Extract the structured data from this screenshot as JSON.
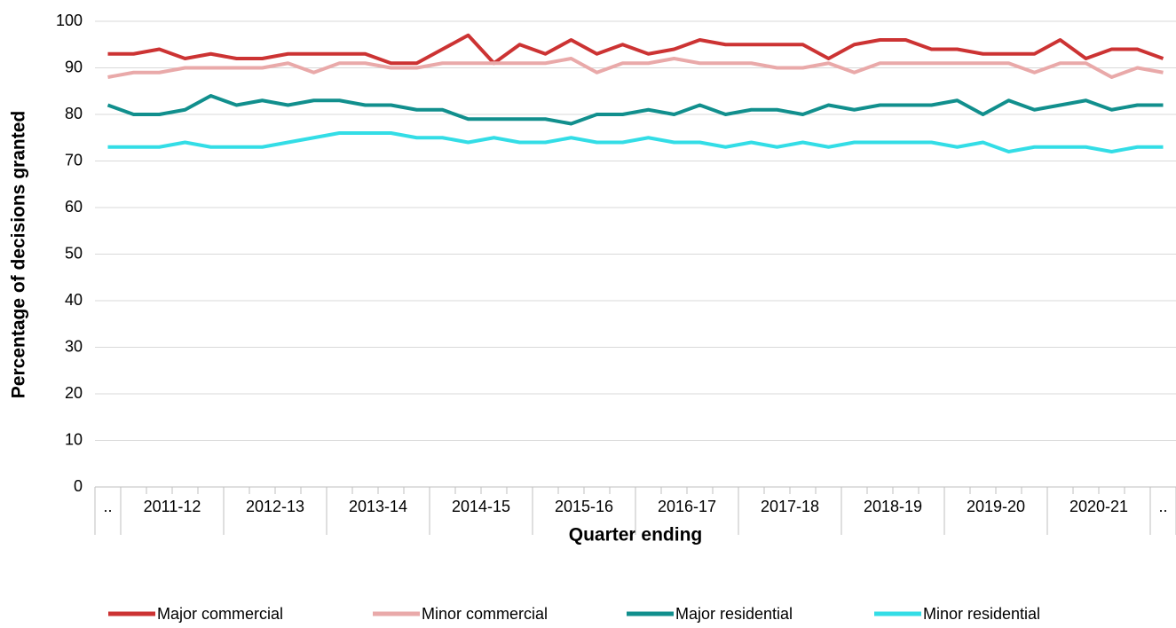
{
  "chart_data": {
    "type": "line",
    "y_label": "Percentage of decisions granted",
    "x_label": "Quarter ending",
    "categories": [
      null,
      null,
      null,
      null,
      null,
      null,
      null,
      null,
      null,
      null,
      null,
      null,
      null,
      null,
      null,
      null,
      null,
      null,
      null,
      null,
      null,
      null,
      null,
      null,
      null,
      null,
      null,
      null,
      null,
      null,
      null,
      null,
      null,
      null,
      null,
      null,
      null,
      null,
      null,
      null,
      null,
      null
    ],
    "category_groups": [
      {
        "label": "..",
        "span": 1
      },
      {
        "label": "2011-12",
        "span": 4
      },
      {
        "label": "2012-13",
        "span": 4
      },
      {
        "label": "2013-14",
        "span": 4
      },
      {
        "label": "2014-15",
        "span": 4
      },
      {
        "label": "2015-16",
        "span": 4
      },
      {
        "label": "2016-17",
        "span": 4
      },
      {
        "label": "2017-18",
        "span": 4
      },
      {
        "label": "2018-19",
        "span": 4
      },
      {
        "label": "2019-20",
        "span": 4
      },
      {
        "label": "2020-21",
        "span": 4
      },
      {
        "label": "..",
        "span": 1
      }
    ],
    "series": [
      {
        "name": "Major commercial",
        "color": "#cc3333",
        "values": [
          93,
          93,
          94,
          92,
          93,
          92,
          92,
          93,
          93,
          93,
          93,
          91,
          91,
          94,
          97,
          91,
          95,
          93,
          96,
          93,
          95,
          93,
          94,
          96,
          95,
          95,
          95,
          95,
          92,
          95,
          96,
          96,
          94,
          94,
          93,
          93,
          93,
          96,
          92,
          94,
          94,
          92
        ]
      },
      {
        "name": "Minor commercial",
        "color": "#e9a9a9",
        "values": [
          88,
          89,
          89,
          90,
          90,
          90,
          90,
          91,
          89,
          91,
          91,
          90,
          90,
          91,
          91,
          91,
          91,
          91,
          92,
          89,
          91,
          91,
          92,
          91,
          91,
          91,
          90,
          90,
          91,
          89,
          91,
          91,
          91,
          91,
          91,
          91,
          89,
          91,
          91,
          88,
          90,
          89
        ]
      },
      {
        "name": "Major residential",
        "color": "#118f8d",
        "values": [
          82,
          80,
          80,
          81,
          84,
          82,
          83,
          82,
          83,
          83,
          82,
          82,
          81,
          81,
          79,
          79,
          79,
          79,
          78,
          80,
          80,
          81,
          80,
          82,
          80,
          81,
          81,
          80,
          82,
          81,
          82,
          82,
          82,
          83,
          80,
          83,
          81,
          82,
          83,
          81,
          82,
          82
        ]
      },
      {
        "name": "Minor residential",
        "color": "#33dde6",
        "values": [
          73,
          73,
          73,
          74,
          73,
          73,
          73,
          74,
          75,
          76,
          76,
          76,
          75,
          75,
          74,
          75,
          74,
          74,
          75,
          74,
          74,
          75,
          74,
          74,
          73,
          74,
          73,
          74,
          73,
          74,
          74,
          74,
          74,
          73,
          74,
          72,
          73,
          73,
          73,
          72,
          73,
          73
        ]
      }
    ],
    "ylim": [
      0,
      100
    ],
    "yticks": [
      0,
      10,
      20,
      30,
      40,
      50,
      60,
      70,
      80,
      90,
      100
    ],
    "grid": true,
    "legend": "bottom"
  }
}
